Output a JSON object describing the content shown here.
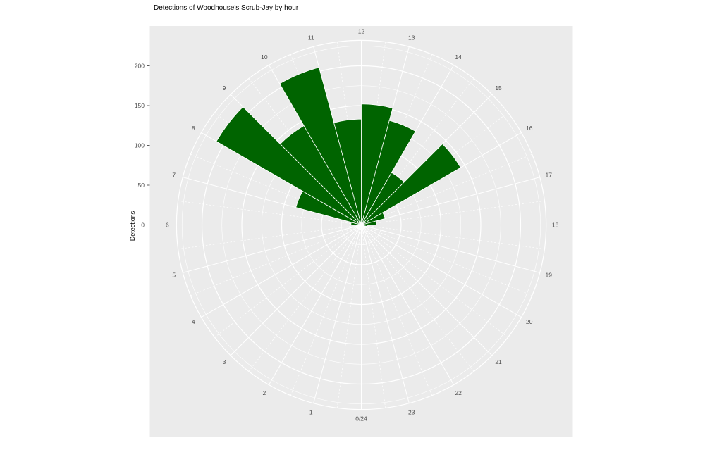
{
  "chart_data": {
    "type": "polar_bar",
    "title": "Detections of Woodhouse's Scrub-Jay by hour",
    "ylabel": "Detections",
    "orientation": "clock24_12_at_top_clockwise",
    "categories_hours": [
      0,
      1,
      2,
      3,
      4,
      5,
      6,
      7,
      8,
      9,
      10,
      11,
      12,
      13,
      14,
      15,
      16,
      17,
      18,
      19,
      20,
      21,
      22,
      23
    ],
    "values": [
      0,
      0,
      0,
      0,
      0,
      0,
      13,
      85,
      210,
      144,
      205,
      133,
      152,
      136,
      76,
      144,
      31,
      19,
      7,
      0,
      0,
      0,
      0,
      0
    ],
    "hour_labels": [
      "0/24",
      "1",
      "2",
      "3",
      "4",
      "5",
      "6",
      "7",
      "8",
      "9",
      "10",
      "11",
      "12",
      "13",
      "14",
      "15",
      "16",
      "17",
      "18",
      "19",
      "20",
      "21",
      "22",
      "23"
    ],
    "radial_ticks": [
      0,
      50,
      100,
      150,
      200
    ],
    "radial_minor": [
      25,
      75,
      125,
      175,
      225
    ],
    "rlim": [
      0,
      232
    ],
    "grid": "on",
    "legend": "none",
    "bar_color": "#006400",
    "panel_color": "#ebebeb",
    "grid_color": "#ffffff",
    "axis_text_color": "#4d4d4d",
    "title_color": "#000000"
  }
}
